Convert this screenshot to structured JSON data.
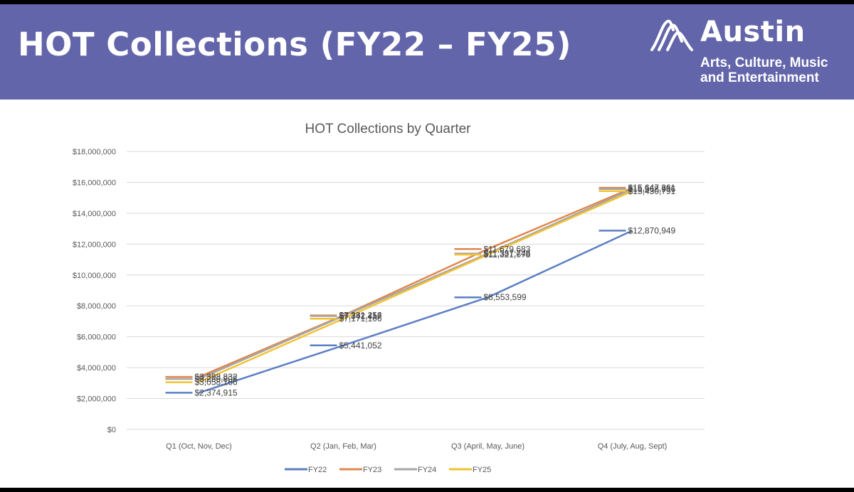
{
  "slide": {
    "title": "HOT Collections (FY22 – FY25)",
    "logo": {
      "name": "Austin",
      "line1": "Arts, Culture, Music",
      "line2": "and Entertainment"
    },
    "header_color": "#6365aa"
  },
  "chart_data": {
    "type": "line",
    "title": "HOT Collections by Quarter",
    "categories": [
      "Q1 (Oct, Nov, Dec)",
      "Q2 (Jan, Feb, Mar)",
      "Q3 (April, May, June)",
      "Q4 (July, Aug, Sept)"
    ],
    "ylim": [
      0,
      18000000
    ],
    "yticks": [
      0,
      2000000,
      4000000,
      6000000,
      8000000,
      10000000,
      12000000,
      14000000,
      16000000,
      18000000
    ],
    "ytick_labels": [
      "$0",
      "$2,000,000",
      "$4,000,000",
      "$6,000,000",
      "$8,000,000",
      "$10,000,000",
      "$12,000,000",
      "$14,000,000",
      "$16,000,000",
      "$18,000,000"
    ],
    "grid": true,
    "legend_position": "bottom",
    "series": [
      {
        "name": "FY22",
        "color": "#5b7fc3",
        "values": [
          2374915,
          5441052,
          8553599,
          12870949
        ],
        "labels": [
          "$2,374,915",
          "$5,441,052",
          "$8,553,599",
          "$12,870,949"
        ]
      },
      {
        "name": "FY23",
        "color": "#e0874f",
        "values": [
          3398832,
          7381256,
          11679683,
          15647361
        ],
        "labels": [
          "$3,398,832",
          "$7,381,256",
          "$11,679,683",
          "$15,647,361"
        ]
      },
      {
        "name": "FY24",
        "color": "#a6a6a6",
        "values": [
          3266808,
          7342417,
          11387746,
          15568936
        ],
        "labels": [
          "$3,266,808",
          "$7,342,417",
          "$11,387,746",
          "$15,568,936"
        ]
      },
      {
        "name": "FY25",
        "color": "#f2c232",
        "values": [
          3058166,
          7171106,
          11321678,
          15430791
        ],
        "labels": [
          "$3,058,166",
          "$7,171,106",
          "$11,321,678",
          "$15,430,791"
        ]
      }
    ]
  }
}
